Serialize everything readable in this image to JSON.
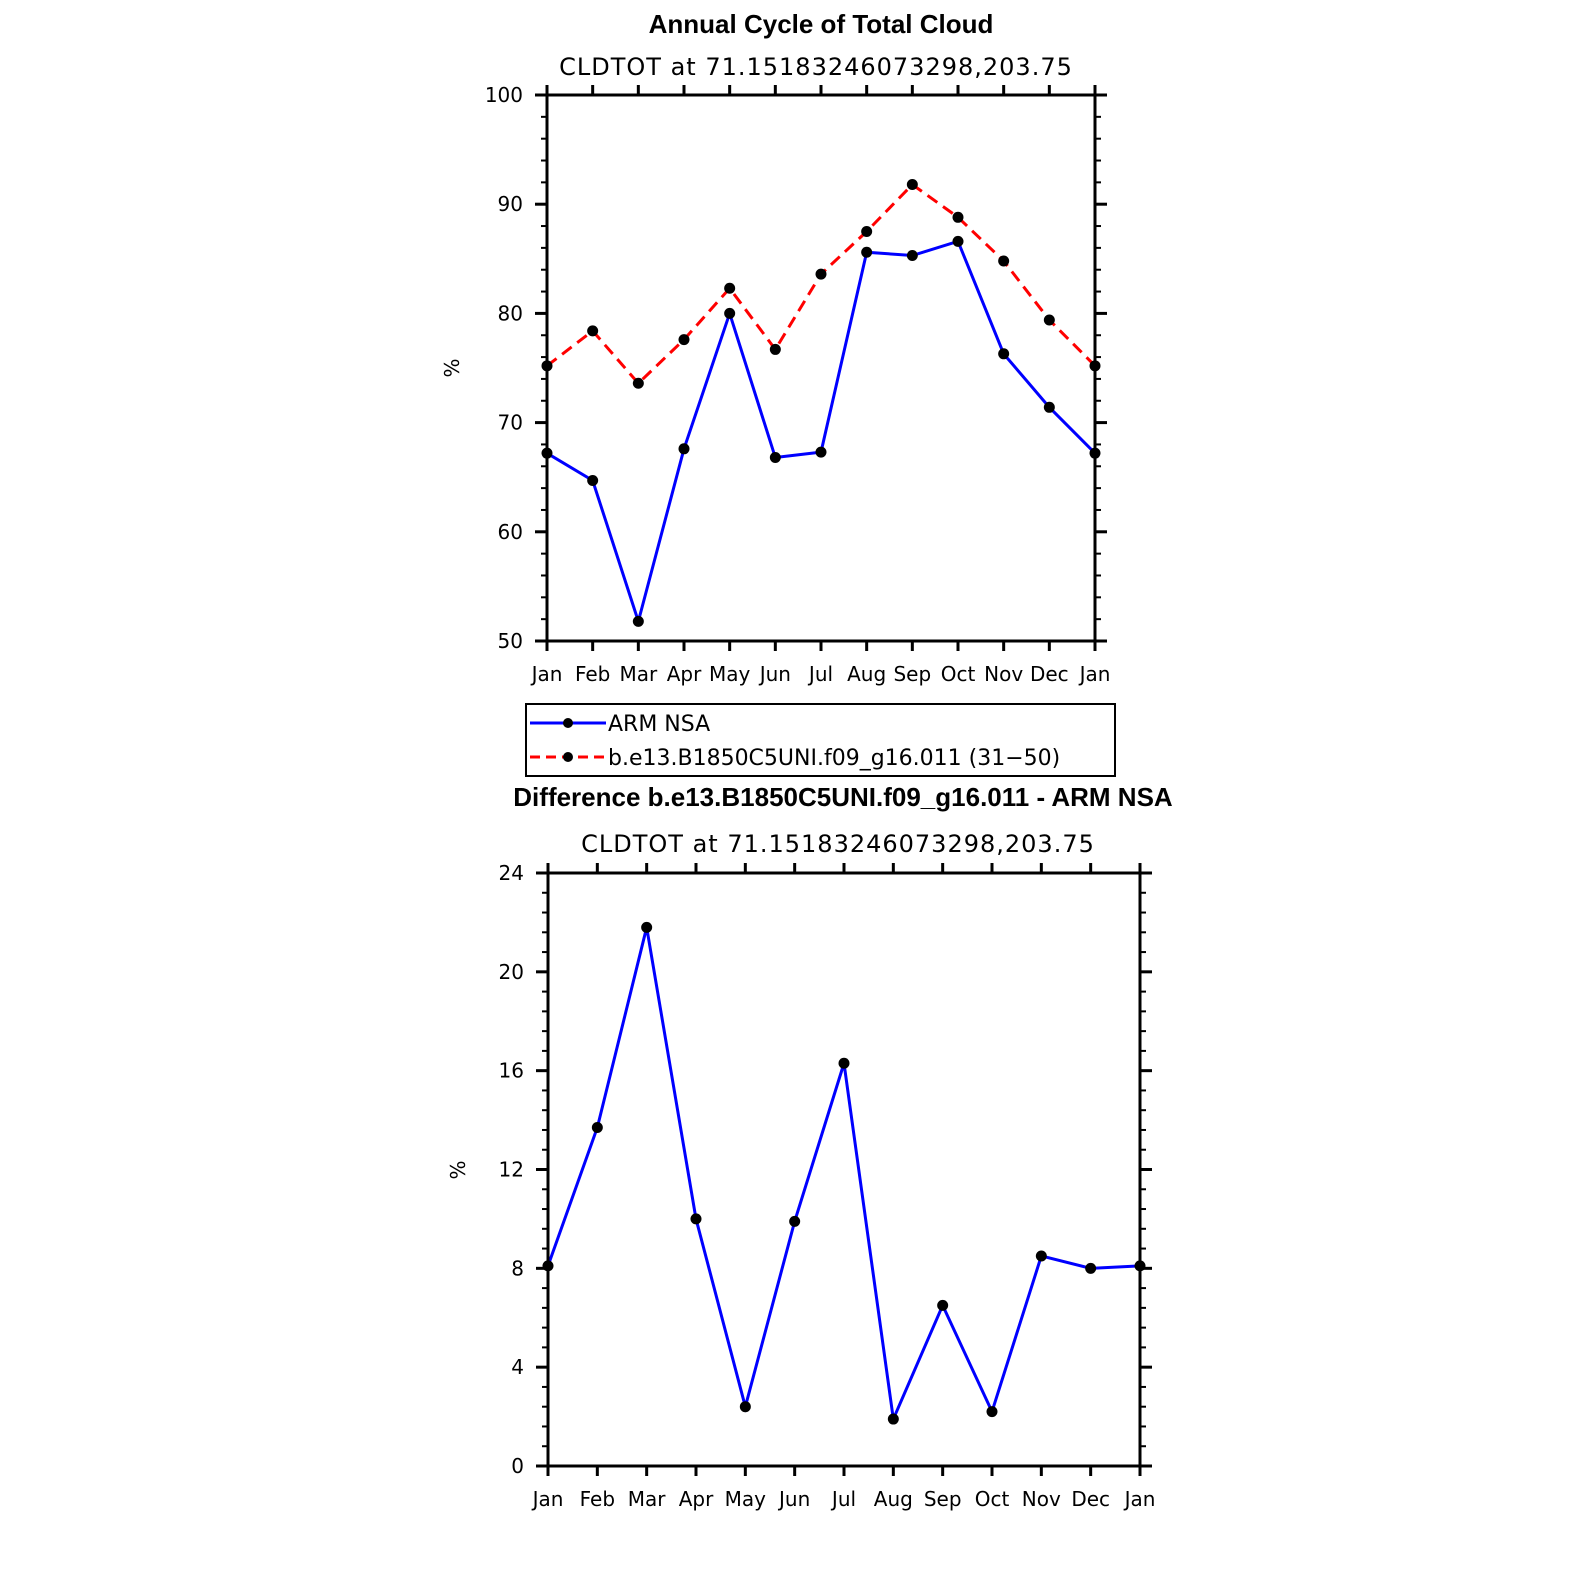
{
  "chart_data": [
    {
      "type": "line",
      "title": "Annual Cycle of Total Cloud",
      "subtitle": "CLDTOT at 71.15183246073298,203.75",
      "xlabel": "",
      "ylabel": "%",
      "categories": [
        "Jan",
        "Feb",
        "Mar",
        "Apr",
        "May",
        "Jun",
        "Jul",
        "Aug",
        "Sep",
        "Oct",
        "Nov",
        "Dec",
        "Jan"
      ],
      "ylim": [
        50,
        100
      ],
      "yticks": [
        50,
        60,
        70,
        80,
        90,
        100
      ],
      "legend": "bottom",
      "series": [
        {
          "name": "ARM NSA",
          "color": "#0000ff",
          "dash": "solid",
          "values": [
            67.2,
            64.7,
            51.8,
            67.6,
            80.0,
            66.8,
            67.3,
            85.6,
            85.3,
            86.6,
            76.3,
            71.4,
            67.2
          ]
        },
        {
          "name": "b.e13.B1850C5UNI.f09_g16.011 (31−50)",
          "color": "#ff0000",
          "dash": "dashed",
          "values": [
            75.2,
            78.4,
            73.6,
            77.6,
            82.3,
            76.7,
            83.6,
            87.5,
            91.8,
            88.8,
            84.8,
            79.4,
            75.2
          ]
        }
      ]
    },
    {
      "type": "line",
      "title": "Difference b.e13.B1850C5UNI.f09_g16.011 - ARM NSA",
      "subtitle": "CLDTOT at 71.15183246073298,203.75",
      "xlabel": "",
      "ylabel": "%",
      "categories": [
        "Jan",
        "Feb",
        "Mar",
        "Apr",
        "May",
        "Jun",
        "Jul",
        "Aug",
        "Sep",
        "Oct",
        "Nov",
        "Dec",
        "Jan"
      ],
      "ylim": [
        0,
        24
      ],
      "yticks": [
        0,
        4,
        8,
        12,
        16,
        20,
        24
      ],
      "series": [
        {
          "color": "#0000ff",
          "dash": "solid",
          "values": [
            8.1,
            13.7,
            21.8,
            10.0,
            2.4,
            9.9,
            16.3,
            1.9,
            6.5,
            2.2,
            8.5,
            8.0,
            8.1
          ]
        }
      ]
    }
  ]
}
